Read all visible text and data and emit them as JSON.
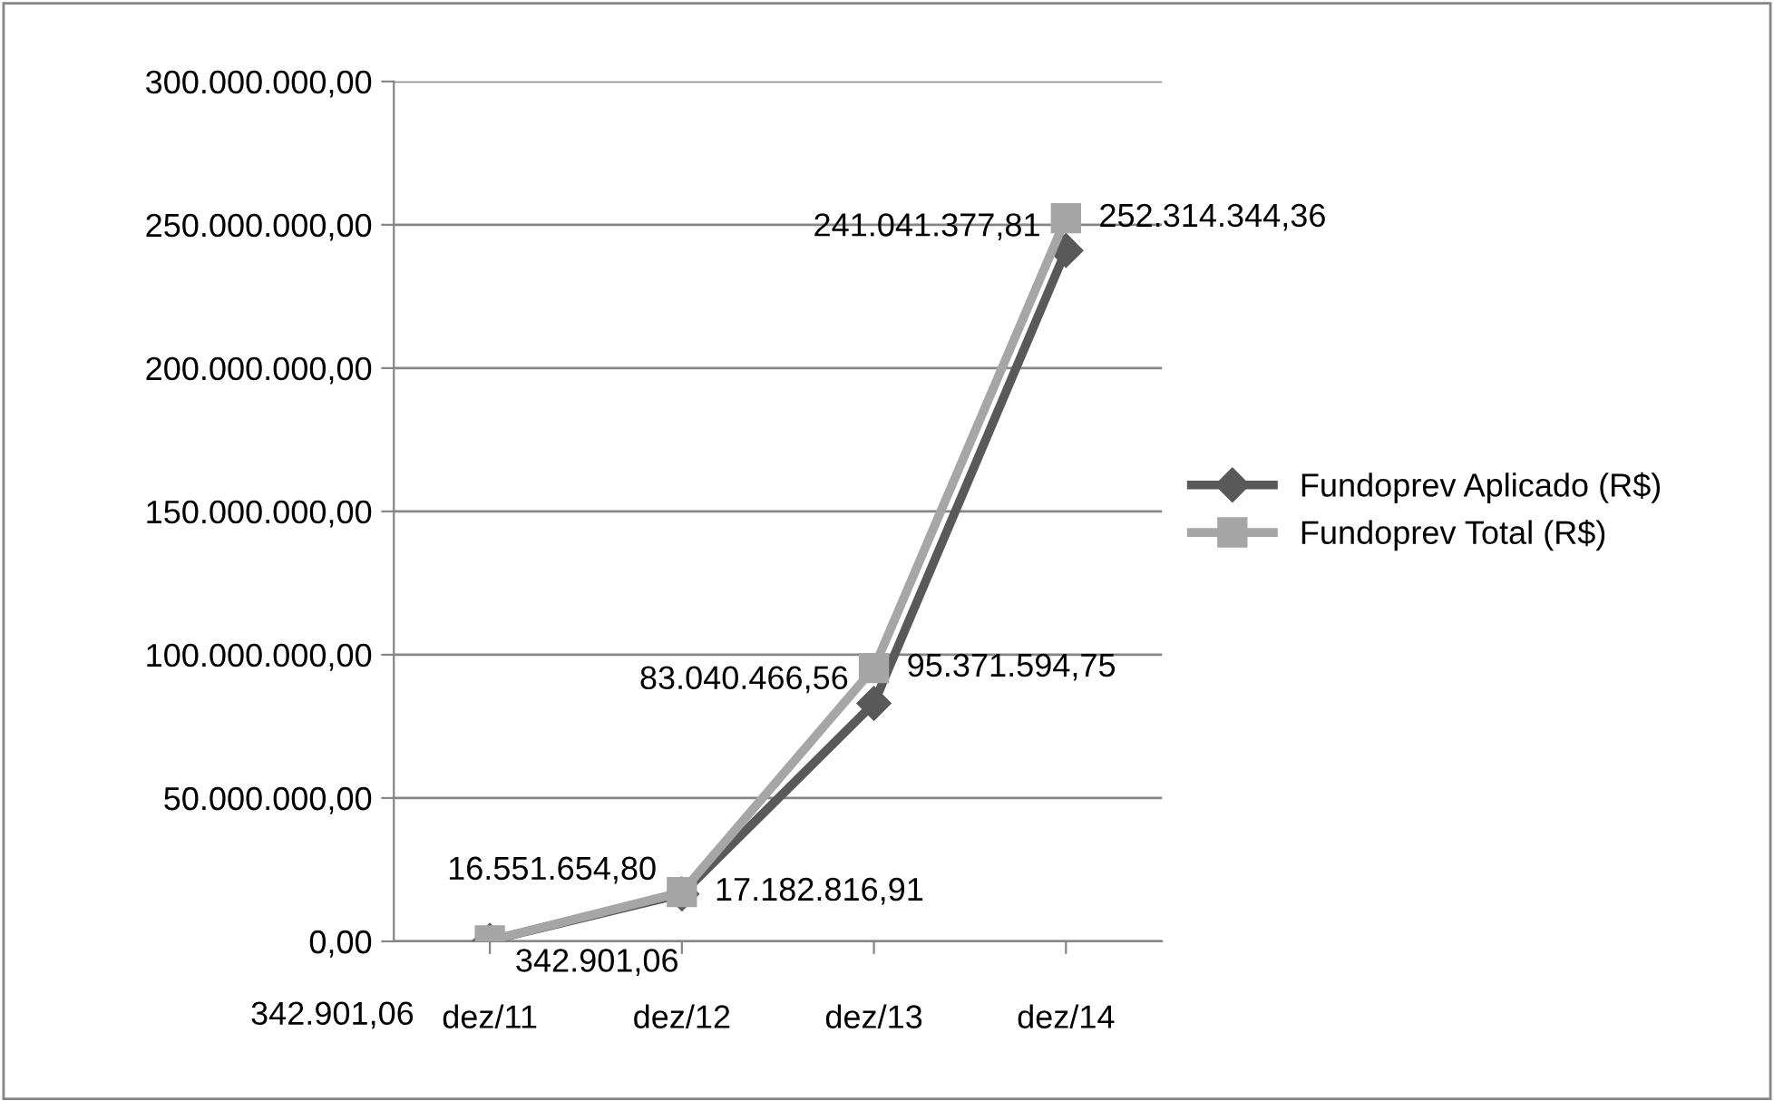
{
  "chart_data": {
    "type": "line",
    "categories": [
      "dez/11",
      "dez/12",
      "dez/13",
      "dez/14"
    ],
    "series": [
      {
        "name": "Fundoprev Aplicado (R$)",
        "color": "#595959",
        "marker": "diamond",
        "values": [
          342901.06,
          16551654.8,
          83040466.56,
          241041377.81
        ],
        "value_labels": [
          "342.901,06",
          "16.551.654,80",
          "83.040.466,56",
          "241.041.377,81"
        ]
      },
      {
        "name": "Fundoprev Total (R$)",
        "color": "#a6a6a6",
        "marker": "square",
        "values": [
          342901.06,
          17182816.91,
          95371594.75,
          252314344.36
        ],
        "value_labels": [
          "342.901,06",
          "17.182.816,91",
          "95.371.594,75",
          "252.314.344,36"
        ]
      }
    ],
    "ylim": [
      0,
      300000000
    ],
    "yticks": [
      {
        "value": 0,
        "label": "0,00"
      },
      {
        "value": 50000000,
        "label": "50.000.000,00"
      },
      {
        "value": 100000000,
        "label": "100.000.000,00"
      },
      {
        "value": 150000000,
        "label": "150.000.000,00"
      },
      {
        "value": 200000000,
        "label": "200.000.000,00"
      },
      {
        "value": 250000000,
        "label": "250.000.000,00"
      },
      {
        "value": 300000000,
        "label": "300.000.000,00"
      }
    ],
    "grid": "y",
    "legend": "right",
    "line_style": "solid"
  }
}
